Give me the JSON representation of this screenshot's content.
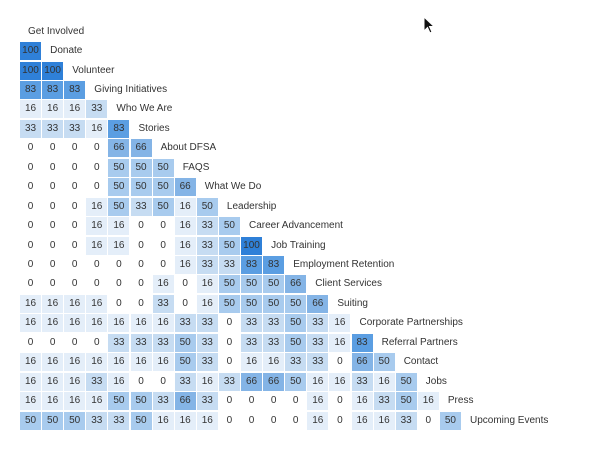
{
  "first_label": "Get Involved",
  "rows": [
    {
      "label": "Donate",
      "values": [
        100
      ]
    },
    {
      "label": "Volunteer",
      "values": [
        100,
        100
      ]
    },
    {
      "label": "Giving Initiatives",
      "values": [
        83,
        83,
        83
      ]
    },
    {
      "label": "Who We Are",
      "values": [
        16,
        16,
        16,
        33
      ]
    },
    {
      "label": "Stories",
      "values": [
        33,
        33,
        33,
        16,
        83
      ]
    },
    {
      "label": "About DFSA",
      "values": [
        0,
        0,
        0,
        0,
        66,
        66
      ]
    },
    {
      "label": "FAQS",
      "values": [
        0,
        0,
        0,
        0,
        50,
        50,
        50
      ]
    },
    {
      "label": "What We Do",
      "values": [
        0,
        0,
        0,
        0,
        50,
        50,
        50,
        66
      ]
    },
    {
      "label": "Leadership",
      "values": [
        0,
        0,
        0,
        16,
        50,
        33,
        50,
        16,
        50
      ]
    },
    {
      "label": "Career Advancement",
      "values": [
        0,
        0,
        0,
        16,
        16,
        0,
        0,
        16,
        33,
        50
      ]
    },
    {
      "label": "Job Training",
      "values": [
        0,
        0,
        0,
        16,
        16,
        0,
        0,
        16,
        33,
        50,
        100
      ]
    },
    {
      "label": "Employment Retention",
      "values": [
        0,
        0,
        0,
        0,
        0,
        0,
        0,
        16,
        33,
        33,
        83,
        83
      ]
    },
    {
      "label": "Client Services",
      "values": [
        0,
        0,
        0,
        0,
        0,
        0,
        16,
        0,
        16,
        50,
        50,
        50,
        66
      ]
    },
    {
      "label": "Suiting",
      "values": [
        16,
        16,
        16,
        16,
        0,
        0,
        33,
        0,
        16,
        50,
        50,
        50,
        50,
        66
      ]
    },
    {
      "label": "Corporate Partnerships",
      "values": [
        16,
        16,
        16,
        16,
        16,
        16,
        16,
        33,
        33,
        0,
        33,
        33,
        50,
        33,
        16
      ]
    },
    {
      "label": "Referral Partners",
      "values": [
        0,
        0,
        0,
        0,
        33,
        33,
        33,
        50,
        33,
        0,
        33,
        33,
        50,
        33,
        16,
        83
      ]
    },
    {
      "label": "Contact",
      "values": [
        16,
        16,
        16,
        16,
        16,
        16,
        16,
        50,
        33,
        0,
        16,
        16,
        33,
        33,
        0,
        66,
        50
      ]
    },
    {
      "label": "Jobs",
      "values": [
        16,
        16,
        16,
        33,
        16,
        0,
        0,
        33,
        16,
        33,
        66,
        66,
        50,
        16,
        16,
        33,
        16,
        50
      ]
    },
    {
      "label": "Press",
      "values": [
        16,
        16,
        16,
        16,
        50,
        50,
        33,
        66,
        33,
        0,
        0,
        0,
        0,
        16,
        0,
        16,
        33,
        50,
        16
      ]
    },
    {
      "label": "Upcoming Events",
      "values": [
        50,
        50,
        50,
        33,
        33,
        50,
        16,
        16,
        16,
        0,
        0,
        0,
        0,
        16,
        0,
        16,
        16,
        33,
        0,
        50
      ]
    }
  ],
  "colors": {
    "text": "#333333",
    "scale": [
      "#ffffff",
      "#e4eef9",
      "#c6dcf2",
      "#a8cbee",
      "#84b4e6",
      "#5b9ee2",
      "#2f80d8"
    ]
  },
  "icons": [
    "mouse-pointer-icon"
  ]
}
